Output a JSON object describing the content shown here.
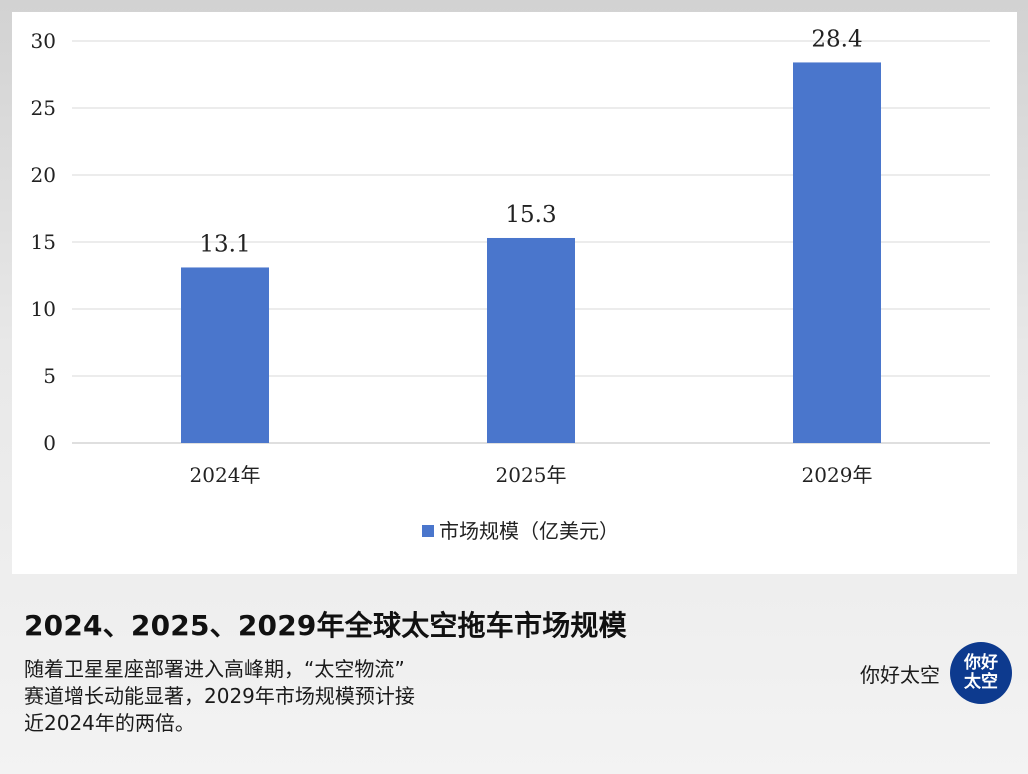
{
  "chart_data": {
    "type": "bar",
    "categories": [
      "2024年",
      "2025年",
      "2029年"
    ],
    "series": [
      {
        "name": "市场规模（亿美元）",
        "values": [
          13.1,
          15.3,
          28.4
        ]
      }
    ],
    "ylim": [
      0,
      30
    ],
    "yticks": [
      0,
      5,
      10,
      15,
      20,
      25,
      30
    ],
    "grid": true,
    "legend": "bottom",
    "bar_color": "#4a76cc",
    "data_labels": [
      "13.1",
      "15.3",
      "28.4"
    ]
  },
  "caption": {
    "title": "2024、2025、2029年全球太空拖车市场规模",
    "lines": [
      "随着卫星星座部署进入高峰期，“太空物流”",
      "赛道增长动能显著，2029年市场规模预计接",
      "近2024年的两倍。"
    ]
  },
  "brand": {
    "name": "你好太空",
    "logo_text": [
      "你好",
      "太空"
    ],
    "logo_color": "#0d3a8e"
  }
}
